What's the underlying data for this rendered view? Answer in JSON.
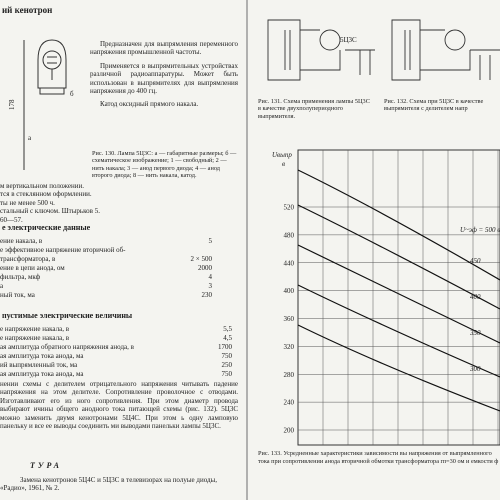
{
  "left_page": {
    "heading": "ий кенотрон",
    "intro": [
      "Предназначен для выпрямления переменного напряжения промышленной частоты.",
      "Применяется в выпрямительных устройствах различной радиоаппаратуры. Может быть использован в выпрямителях для выпрямления напряжения до 400 гц.",
      "Катод оксидный прямого накала."
    ],
    "figure_130": {
      "label_a": "а",
      "label_b": "б",
      "dim": "178",
      "caption_title": "Рис. 130. Лампа 5Ц3С:",
      "caption_text": "а — габаритные размеры; б — схематическое изображение; 1 — свободный; 2 — нить накала; 3 — анод первого диода; 4 — анод второго диода; 8 — нить накала, катод."
    },
    "notes": [
      "м вертикальном положении.",
      "тся в стеклянном оформлении.",
      "ты не менее 500 ч.",
      "стальный с ключом. Штырьков 5.",
      "60—57."
    ],
    "ratings_heading": "е электрические данные",
    "ratings": [
      [
        "ение накала, в",
        "5"
      ],
      [
        "е эффективное напряжение вторичной об-",
        ""
      ],
      [
        "трансформатора, в",
        "2 × 500"
      ],
      [
        "ение в цепи анода, ом",
        "2000"
      ],
      [
        "фильтра, мкф",
        "4"
      ],
      [
        "а",
        "3"
      ],
      [
        "ный ток, ма",
        "230"
      ]
    ],
    "limits_heading": "пустимые электрические величины",
    "limits": [
      [
        "е напряжение накала, в",
        "5,5"
      ],
      [
        "е напряжение накала, в",
        "4,5"
      ],
      [
        "ая амплитуда обратного напряжения анода, в",
        "1700"
      ],
      [
        "ая амплитуда тока анода, ма",
        "750"
      ],
      [
        "ий выпрямленный ток, ма",
        "250"
      ],
      [
        "ая амплитуда тока анода, ма",
        "750"
      ]
    ],
    "paragraph": "нении схемы с делителем отрицательного напряжения читывать падение напряжения на этом делителе. Сопротивление проволочное с отводами. Изготавливают его из ного сопротивления. При этом диаметр провода выбирают ичины общего анодного тока питающей схемы (рис. 132). 5Ц3С можно заменить двумя кенотронами 5Ц4С. При этом ь одну ламповую панельку и все ее выводы соединить ми выводами панельки лампы 5Ц3С.",
    "lit_heading": "ТУРА",
    "lit_item": "Замена кенотронов 5Ц4С и 5Ц3С в телевизорах на полуые диоды, «Радио», 1961, № 2."
  },
  "right_page": {
    "tube_label": "5Ц3С",
    "figure_131_caption": "Рис. 131. Схема применения лампы 5Ц3С в качестве двухполупериодного выпрямителя.",
    "figure_132_caption": "Рис. 132. Схема при 5Ц3С в качестве выпрямителя с делителем напр",
    "figure_133": {
      "y_label": "Uвыпр",
      "y_unit": "в",
      "yticks": [
        520,
        480,
        440,
        400,
        360,
        320,
        280,
        240,
        200
      ],
      "curve_labels": [
        "U~эф = 500 в",
        "450",
        "400",
        "350",
        "300"
      ],
      "caption": "Рис. 133. Усредненные характеристики зависимости вы напряжения от выпрямленного тока при сопротивлении анода вторичной обмотки трансформатора rп=30 ом и емкости ф"
    }
  }
}
